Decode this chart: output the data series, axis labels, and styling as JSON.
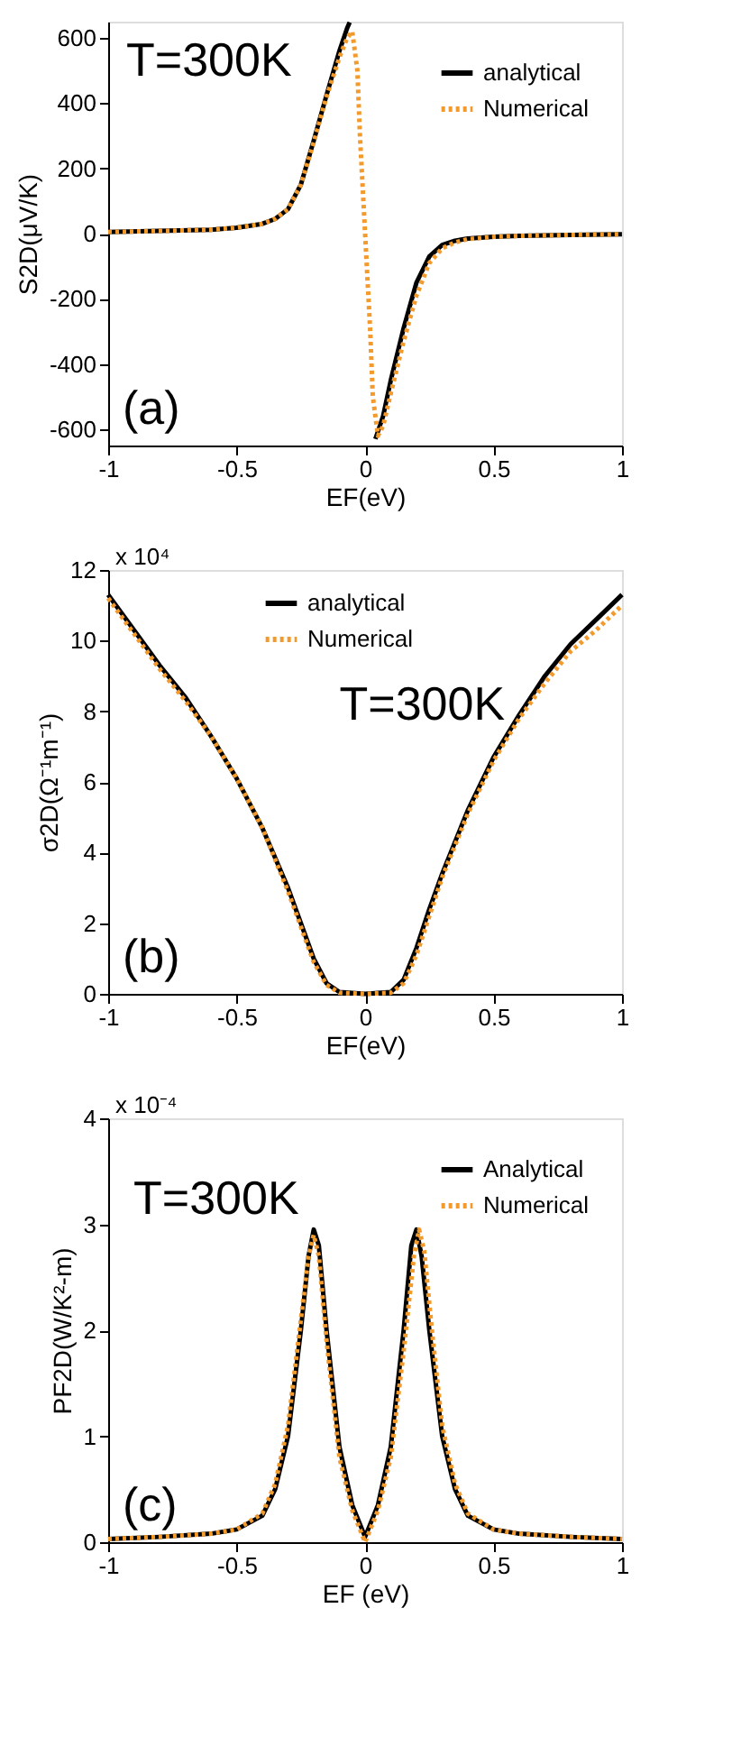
{
  "chart_data": [
    {
      "type": "line",
      "xlabel": "EF(eV)",
      "ylabel": "S2D(μV/K)",
      "annotations": [
        "T=300K",
        "(a)"
      ],
      "xlim": [
        -1,
        1
      ],
      "xticks": [
        -1,
        -0.5,
        0,
        0.5,
        1
      ],
      "ylim": [
        -650,
        650
      ],
      "yticks": [
        -600,
        -400,
        -200,
        0,
        200,
        400,
        600
      ],
      "grid": false,
      "legend": "top right",
      "series": [
        {
          "name": "analytical",
          "color": "#000000",
          "line_style": "solid",
          "x": [
            -1,
            -0.8,
            -0.6,
            -0.5,
            -0.4,
            -0.35,
            -0.3,
            -0.25,
            -0.2,
            -0.15,
            -0.1,
            -0.07,
            -0.06,
            -0.04,
            0.02,
            0.04,
            0.07,
            0.1,
            0.15,
            0.2,
            0.25,
            0.3,
            0.35,
            0.4,
            0.5,
            0.6,
            0.8,
            1
          ],
          "values": [
            5,
            8,
            12,
            18,
            30,
            45,
            75,
            150,
            285,
            425,
            560,
            630,
            648,
            null,
            null,
            -630,
            -560,
            -450,
            -290,
            -150,
            -70,
            -35,
            -22,
            -15,
            -10,
            -7,
            -4,
            -2
          ]
        },
        {
          "name": "Numerical",
          "color": "#f39a2c",
          "line_style": "dotted",
          "x": [
            -1,
            -0.8,
            -0.6,
            -0.5,
            -0.4,
            -0.35,
            -0.3,
            -0.25,
            -0.2,
            -0.15,
            -0.1,
            -0.07,
            -0.05,
            -0.03,
            -0.02,
            -0.01,
            0,
            0.01,
            0.02,
            0.03,
            0.05,
            0.07,
            0.1,
            0.15,
            0.2,
            0.25,
            0.3,
            0.35,
            0.4,
            0.5,
            0.6,
            0.8,
            1
          ],
          "values": [
            5,
            8,
            12,
            18,
            30,
            45,
            75,
            150,
            280,
            420,
            540,
            600,
            620,
            500,
            300,
            150,
            0,
            -150,
            -300,
            -500,
            -620,
            -590,
            -490,
            -330,
            -190,
            -90,
            -45,
            -27,
            -17,
            -10,
            -7,
            -4,
            -2
          ]
        }
      ]
    },
    {
      "type": "line",
      "xlabel": "EF(eV)",
      "ylabel": "σ2D(Ω⁻¹m⁻¹)",
      "annotations": [
        "x 10⁴",
        "T=300K",
        "(b)"
      ],
      "xlim": [
        -1,
        1
      ],
      "xticks": [
        -1,
        -0.5,
        0,
        0.5,
        1
      ],
      "ylim": [
        0,
        12
      ],
      "yticks": [
        0,
        2,
        4,
        6,
        8,
        10,
        12
      ],
      "grid": false,
      "legend": "top",
      "series": [
        {
          "name": "analytical",
          "color": "#000000",
          "line_style": "solid",
          "x": [
            -1,
            -0.9,
            -0.8,
            -0.7,
            -0.6,
            -0.5,
            -0.4,
            -0.3,
            -0.25,
            -0.2,
            -0.15,
            -0.1,
            0,
            0.1,
            0.15,
            0.2,
            0.25,
            0.3,
            0.4,
            0.5,
            0.6,
            0.7,
            0.8,
            0.9,
            1
          ],
          "values": [
            11.3,
            10.3,
            9.3,
            8.4,
            7.3,
            6.1,
            4.7,
            3.0,
            2.0,
            1.0,
            0.3,
            0.05,
            0,
            0.05,
            0.4,
            1.3,
            2.4,
            3.4,
            5.2,
            6.7,
            7.9,
            9.0,
            9.9,
            10.6,
            11.3
          ]
        },
        {
          "name": "Numerical",
          "color": "#f39a2c",
          "line_style": "dotted",
          "x": [
            -1,
            -0.9,
            -0.8,
            -0.7,
            -0.6,
            -0.5,
            -0.4,
            -0.3,
            -0.25,
            -0.2,
            -0.15,
            -0.1,
            0,
            0.1,
            0.15,
            0.2,
            0.25,
            0.3,
            0.4,
            0.5,
            0.6,
            0.7,
            0.8,
            0.9,
            1
          ],
          "values": [
            11.2,
            10.2,
            9.2,
            8.3,
            7.3,
            6.1,
            4.7,
            2.9,
            1.9,
            0.9,
            0.25,
            0.03,
            0,
            0.03,
            0.3,
            1.1,
            2.2,
            3.3,
            5.1,
            6.6,
            7.8,
            8.8,
            9.7,
            10.3,
            11.0
          ]
        }
      ]
    },
    {
      "type": "line",
      "xlabel": "EF (eV)",
      "ylabel": "PF2D(W/K²-m)",
      "annotations": [
        "x 10⁻⁴",
        "T=300K",
        "(c)"
      ],
      "xlim": [
        -1,
        1
      ],
      "xticks": [
        -1,
        -0.5,
        0,
        0.5,
        1
      ],
      "ylim": [
        0,
        4
      ],
      "yticks": [
        0,
        1,
        2,
        3,
        4
      ],
      "grid": false,
      "legend": "top right",
      "series": [
        {
          "name": "Analytical",
          "color": "#000000",
          "line_style": "solid",
          "x": [
            -1,
            -0.8,
            -0.6,
            -0.5,
            -0.4,
            -0.35,
            -0.3,
            -0.25,
            -0.22,
            -0.2,
            -0.18,
            -0.15,
            -0.1,
            -0.05,
            0,
            0.05,
            0.1,
            0.15,
            0.18,
            0.2,
            0.22,
            0.25,
            0.3,
            0.35,
            0.4,
            0.5,
            0.6,
            0.8,
            1
          ],
          "values": [
            0.03,
            0.05,
            0.08,
            0.12,
            0.25,
            0.5,
            1.0,
            2.0,
            2.7,
            2.95,
            2.8,
            2.0,
            0.9,
            0.35,
            0.05,
            0.35,
            0.9,
            2.0,
            2.8,
            2.95,
            2.7,
            2.0,
            1.0,
            0.5,
            0.25,
            0.12,
            0.08,
            0.05,
            0.03
          ]
        },
        {
          "name": "Numerical",
          "color": "#f39a2c",
          "line_style": "dotted",
          "x": [
            -1,
            -0.8,
            -0.6,
            -0.5,
            -0.4,
            -0.35,
            -0.3,
            -0.25,
            -0.22,
            -0.2,
            -0.18,
            -0.15,
            -0.1,
            -0.05,
            0,
            0.05,
            0.1,
            0.15,
            0.19,
            0.21,
            0.23,
            0.26,
            0.3,
            0.35,
            0.4,
            0.5,
            0.6,
            0.8,
            1
          ],
          "values": [
            0.03,
            0.05,
            0.08,
            0.12,
            0.27,
            0.55,
            1.1,
            2.1,
            2.7,
            2.9,
            2.7,
            1.9,
            0.8,
            0.3,
            0.0,
            0.3,
            0.8,
            1.8,
            2.7,
            2.95,
            2.75,
            2.0,
            1.1,
            0.55,
            0.27,
            0.12,
            0.08,
            0.05,
            0.03
          ]
        }
      ]
    }
  ]
}
